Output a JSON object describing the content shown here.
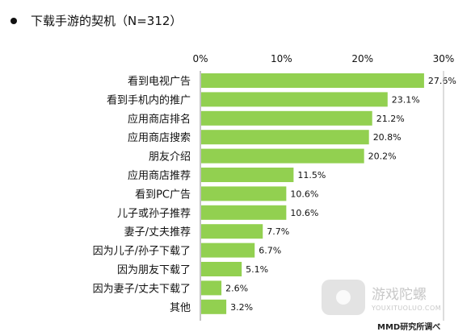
{
  "chart_data": {
    "type": "bar",
    "orientation": "horizontal",
    "title": "下载手游的契机（N=312）",
    "categories": [
      "看到电视广告",
      "看到手机内的推广",
      "应用商店排名",
      "应用商店搜索",
      "朋友介绍",
      "应用商店推荐",
      "看到PC广告",
      "儿子或孙子推荐",
      "妻子/丈夫推荐",
      "因为儿子/孙子下载了",
      "因为朋友下载了",
      "因为妻子/丈夫下载了",
      "其他"
    ],
    "values": [
      27.6,
      23.1,
      21.2,
      20.8,
      20.2,
      11.5,
      10.6,
      10.6,
      7.7,
      6.7,
      5.1,
      2.6,
      3.2
    ],
    "value_labels": [
      "27.6%",
      "23.1%",
      "21.2%",
      "20.8%",
      "20.2%",
      "11.5%",
      "10.6%",
      "10.6%",
      "7.7%",
      "6.7%",
      "5.1%",
      "2.6%",
      "3.2%"
    ],
    "xlim": [
      0,
      30
    ],
    "xticks": [
      "0%",
      "10%",
      "20%",
      "30%"
    ],
    "xaxis_position": "top",
    "bar_color": "#92d050",
    "grid": false,
    "legend": "none"
  },
  "watermark": {
    "name": "游戏陀螺",
    "url": "YOUXITUOLUO.COM"
  },
  "source": "MMD研究所调べ"
}
